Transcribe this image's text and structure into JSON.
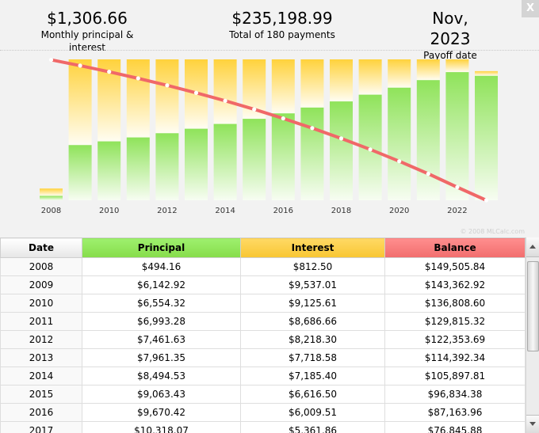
{
  "summary": {
    "payment_value": "$1,306.66",
    "payment_label": "Monthly principal & interest",
    "total_value": "$235,198.99",
    "total_label": "Total of 180 payments",
    "payoff_value": "Nov, 2023",
    "payoff_label": "Payoff date"
  },
  "close_label": "X",
  "copyright": "© 2008 MLCalc.com",
  "colors": {
    "principal": "#8fe35a",
    "interest": "#ffcf40",
    "balance": "#f06868"
  },
  "table": {
    "headers": [
      "Date",
      "Principal",
      "Interest",
      "Balance"
    ],
    "rows": [
      [
        "2008",
        "$494.16",
        "$812.50",
        "$149,505.84"
      ],
      [
        "2009",
        "$6,142.92",
        "$9,537.01",
        "$143,362.92"
      ],
      [
        "2010",
        "$6,554.32",
        "$9,125.61",
        "$136,808.60"
      ],
      [
        "2011",
        "$6,993.28",
        "$8,686.66",
        "$129,815.32"
      ],
      [
        "2012",
        "$7,461.63",
        "$8,218.30",
        "$122,353.69"
      ],
      [
        "2013",
        "$7,961.35",
        "$7,718.58",
        "$114,392.34"
      ],
      [
        "2014",
        "$8,494.53",
        "$7,185.40",
        "$105,897.81"
      ],
      [
        "2015",
        "$9,063.43",
        "$6,616.50",
        "$96,834.38"
      ],
      [
        "2016",
        "$9,670.42",
        "$6,009.51",
        "$87,163.96"
      ],
      [
        "2017",
        "$10,318.07",
        "$5,361.86",
        "$76,845.88"
      ]
    ]
  },
  "chart_data": {
    "type": "bar",
    "years": [
      2008,
      2009,
      2010,
      2011,
      2012,
      2013,
      2014,
      2015,
      2016,
      2017,
      2018,
      2019,
      2020,
      2021,
      2022,
      2023
    ],
    "x_tick_labels": [
      "2008",
      "2010",
      "2012",
      "2014",
      "2016",
      "2018",
      "2020",
      "2022"
    ],
    "principal": [
      494.16,
      6142.92,
      6554.32,
      6993.28,
      7461.63,
      7961.35,
      8494.53,
      9063.43,
      9670.42,
      10318.07,
      11000,
      11750,
      12530,
      13370,
      14260,
      13850
    ],
    "interest": [
      812.5,
      9537.01,
      9125.61,
      8686.66,
      8218.3,
      7718.58,
      7185.4,
      6616.5,
      6009.51,
      5361.86,
      4680,
      3930,
      3150,
      2310,
      1420,
      520
    ],
    "balance": [
      149505.84,
      143362.92,
      136808.6,
      129815.32,
      122353.69,
      114392.34,
      105897.81,
      96834.38,
      87163.96,
      76845.88,
      65840,
      54100,
      41570,
      28200,
      13940,
      0
    ],
    "bar_ylim": [
      0,
      15680
    ],
    "balance_ylim": [
      0,
      150000
    ],
    "grid": false
  }
}
